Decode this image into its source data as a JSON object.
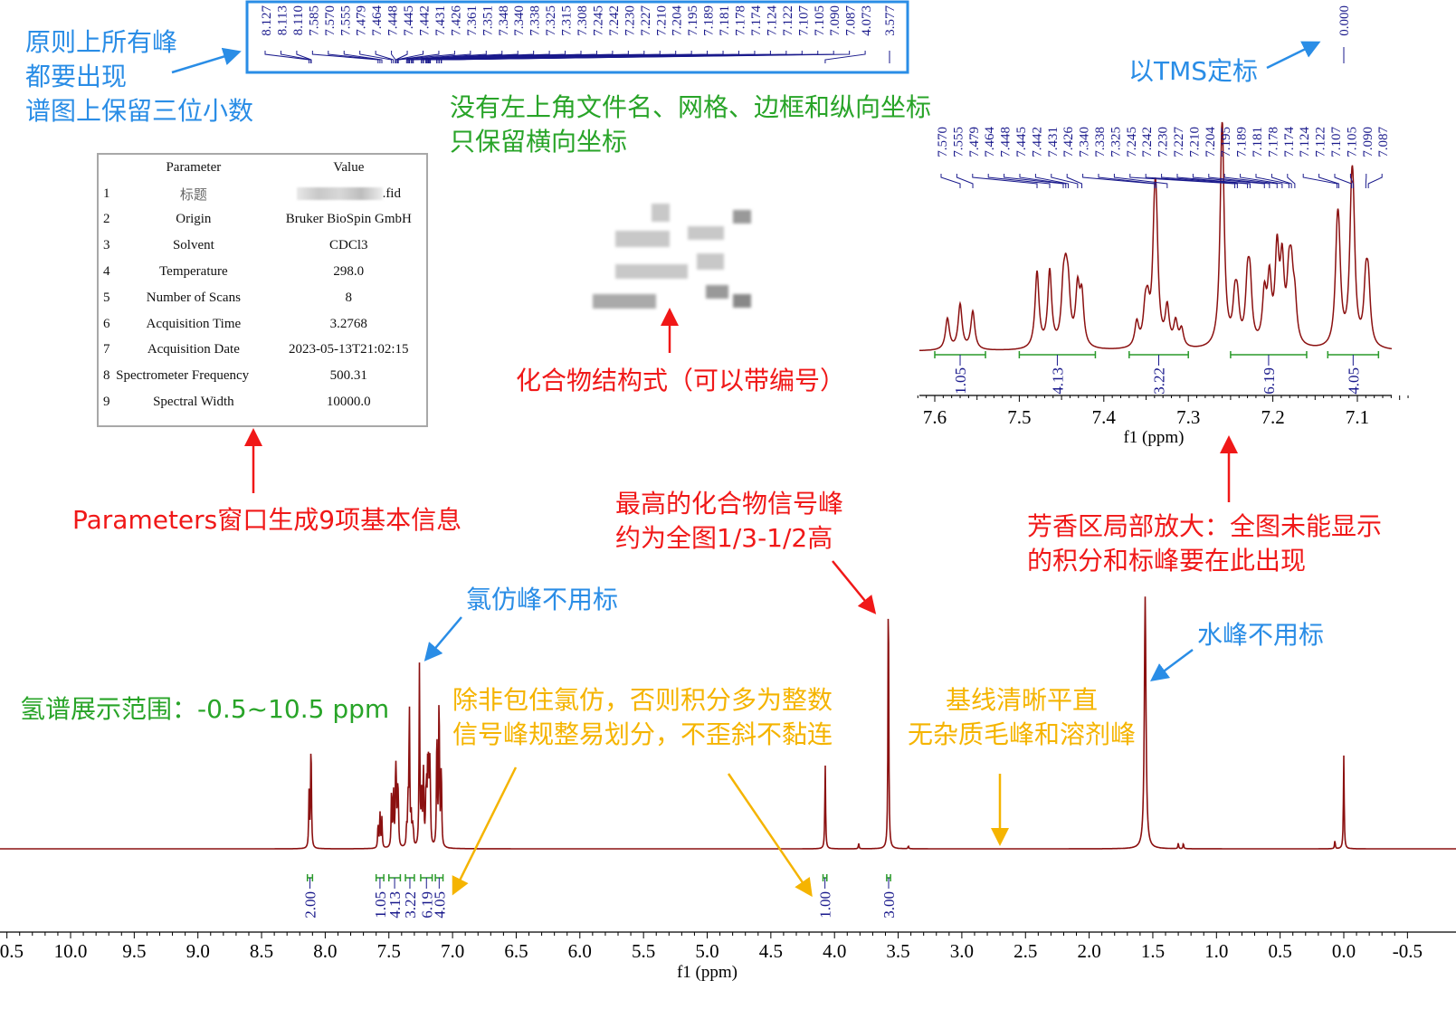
{
  "chart_data": {
    "type": "line",
    "xlabel": "f1 (ppm)",
    "xlim": [
      10.5,
      -0.5
    ],
    "inverted_x": true,
    "x_ticks": [
      "10.5",
      "10.0",
      "9.5",
      "9.0",
      "8.5",
      "8.0",
      "7.5",
      "7.0",
      "6.5",
      "6.0",
      "5.5",
      "5.0",
      "4.5",
      "4.0",
      "3.5",
      "3.0",
      "2.5",
      "2.0",
      "1.5",
      "1.0",
      "0.5",
      "0.0",
      "-0.5"
    ],
    "series_color": "#8b1010",
    "peaks": [
      {
        "ppm": 8.127,
        "i": 20
      },
      {
        "ppm": 8.113,
        "i": 22
      },
      {
        "ppm": 8.11,
        "i": 20
      },
      {
        "ppm": 7.585,
        "i": 9
      },
      {
        "ppm": 7.57,
        "i": 13
      },
      {
        "ppm": 7.555,
        "i": 11
      },
      {
        "ppm": 7.479,
        "i": 22
      },
      {
        "ppm": 7.464,
        "i": 22
      },
      {
        "ppm": 7.448,
        "i": 14
      },
      {
        "ppm": 7.445,
        "i": 14
      },
      {
        "ppm": 7.442,
        "i": 13
      },
      {
        "ppm": 7.431,
        "i": 16
      },
      {
        "ppm": 7.426,
        "i": 14
      },
      {
        "ppm": 7.361,
        "i": 7
      },
      {
        "ppm": 7.351,
        "i": 9
      },
      {
        "ppm": 7.348,
        "i": 9
      },
      {
        "ppm": 7.34,
        "i": 27
      },
      {
        "ppm": 7.338,
        "i": 27
      },
      {
        "ppm": 7.325,
        "i": 11
      },
      {
        "ppm": 7.315,
        "i": 7
      },
      {
        "ppm": 7.308,
        "i": 5
      },
      {
        "ppm": 7.26,
        "i": 66
      },
      {
        "ppm": 7.245,
        "i": 11
      },
      {
        "ppm": 7.242,
        "i": 11
      },
      {
        "ppm": 7.23,
        "i": 16
      },
      {
        "ppm": 7.227,
        "i": 16
      },
      {
        "ppm": 7.21,
        "i": 14
      },
      {
        "ppm": 7.204,
        "i": 18
      },
      {
        "ppm": 7.195,
        "i": 26
      },
      {
        "ppm": 7.189,
        "i": 22
      },
      {
        "ppm": 7.181,
        "i": 16
      },
      {
        "ppm": 7.178,
        "i": 16
      },
      {
        "ppm": 7.174,
        "i": 11
      },
      {
        "ppm": 7.124,
        "i": 22
      },
      {
        "ppm": 7.122,
        "i": 22
      },
      {
        "ppm": 7.107,
        "i": 29
      },
      {
        "ppm": 7.105,
        "i": 29
      },
      {
        "ppm": 7.09,
        "i": 16
      },
      {
        "ppm": 7.087,
        "i": 16
      },
      {
        "ppm": 4.073,
        "i": 31
      },
      {
        "ppm": 3.81,
        "i": 2
      },
      {
        "ppm": 3.577,
        "i": 100
      },
      {
        "ppm": 3.42,
        "i": 1
      },
      {
        "ppm": 1.56,
        "i": 92,
        "broad": true
      },
      {
        "ppm": 1.3,
        "i": 2
      },
      {
        "ppm": 1.26,
        "i": 2
      },
      {
        "ppm": 0.07,
        "i": 3
      },
      {
        "ppm": 0.0,
        "i": 34
      }
    ],
    "peak_labels_top": [
      "8.127",
      "8.113",
      "8.110",
      "7.585",
      "7.570",
      "7.555",
      "7.479",
      "7.464",
      "7.448",
      "7.445",
      "7.442",
      "7.431",
      "7.426",
      "7.361",
      "7.351",
      "7.348",
      "7.340",
      "7.338",
      "7.325",
      "7.315",
      "7.308",
      "7.245",
      "7.242",
      "7.230",
      "7.227",
      "7.210",
      "7.204",
      "7.195",
      "7.189",
      "7.181",
      "7.178",
      "7.174",
      "7.124",
      "7.122",
      "7.107",
      "7.105",
      "7.090",
      "7.087",
      "4.073"
    ],
    "peak_label_3577": "3.577",
    "peak_label_tms": "0.000",
    "integrals": [
      {
        "from": 8.14,
        "to": 8.1,
        "value": "2.00"
      },
      {
        "from": 7.6,
        "to": 7.54,
        "value": "1.05"
      },
      {
        "from": 7.5,
        "to": 7.41,
        "value": "4.13"
      },
      {
        "from": 7.37,
        "to": 7.3,
        "value": "3.22"
      },
      {
        "from": 7.25,
        "to": 7.16,
        "value": "6.19"
      },
      {
        "from": 7.135,
        "to": 7.075,
        "value": "4.05"
      },
      {
        "from": 4.09,
        "to": 4.06,
        "value": "1.00"
      },
      {
        "from": 3.59,
        "to": 3.56,
        "value": "3.00"
      }
    ],
    "inset": {
      "xlim": [
        7.63,
        7.04
      ],
      "x_ticks": [
        "7.6",
        "7.5",
        "7.4",
        "7.3",
        "7.2",
        "7.1"
      ],
      "xlabel": "f1 (ppm)",
      "peak_labels": [
        "7.570",
        "7.555",
        "7.479",
        "7.464",
        "7.448",
        "7.445",
        "7.442",
        "7.431",
        "7.426",
        "7.340",
        "7.338",
        "7.325",
        "7.245",
        "7.242",
        "7.230",
        "7.227",
        "7.210",
        "7.204",
        "7.195",
        "7.189",
        "7.181",
        "7.178",
        "7.174",
        "7.124",
        "7.122",
        "7.107",
        "7.105",
        "7.090",
        "7.087"
      ],
      "integrals": [
        {
          "from": 7.6,
          "to": 7.54,
          "value": "1.05"
        },
        {
          "from": 7.5,
          "to": 7.41,
          "value": "4.13"
        },
        {
          "from": 7.37,
          "to": 7.3,
          "value": "3.22"
        },
        {
          "from": 7.25,
          "to": 7.16,
          "value": "6.19"
        },
        {
          "from": 7.135,
          "to": 7.075,
          "value": "4.05"
        }
      ]
    }
  },
  "params": {
    "header": {
      "parameter": "Parameter",
      "value": "Value"
    },
    "rows": [
      {
        "n": "1",
        "p": "标题",
        "v": ".fid"
      },
      {
        "n": "2",
        "p": "Origin",
        "v": "Bruker BioSpin GmbH"
      },
      {
        "n": "3",
        "p": "Solvent",
        "v": "CDCl3"
      },
      {
        "n": "4",
        "p": "Temperature",
        "v": "298.0"
      },
      {
        "n": "5",
        "p": "Number of Scans",
        "v": "8"
      },
      {
        "n": "6",
        "p": "Acquisition Time",
        "v": "3.2768"
      },
      {
        "n": "7",
        "p": "Acquisition Date",
        "v": "2023-05-13T21:02:15"
      },
      {
        "n": "8",
        "p": "Spectrometer Frequency",
        "v": "500.31"
      },
      {
        "n": "9",
        "p": "Spectral Width",
        "v": "10000.0"
      }
    ]
  },
  "annotations": {
    "all_peaks": [
      "原则上所有峰",
      "都要出现",
      "谱图上保留三位小数"
    ],
    "no_border": [
      "没有左上角文件名、网格、边框和纵向坐标",
      "只保留横向坐标"
    ],
    "tms": "以TMS定标",
    "structure": "化合物结构式（可以带编号）",
    "params": "Parameters窗口生成9项基本信息",
    "tallest": [
      "最高的化合物信号峰",
      "约为全图1/3-1/2高"
    ],
    "zoom": [
      "芳香区局部放大：全图未能显示",
      "的积分和标峰要在此出现"
    ],
    "chloroform": "氯仿峰不用标",
    "water": "水峰不用标",
    "range": "氢谱展示范围：-0.5~10.5 ppm",
    "integral": [
      "除非包住氯仿，否则积分多为整数",
      "信号峰规整易划分，不歪斜不黏连"
    ],
    "baseline": [
      "基线清晰平直",
      "无杂质毛峰和溶剂峰"
    ]
  },
  "colors": {
    "spectrum": "#8b1010",
    "labels": "#1a1a8c",
    "integral": "#2a9a2a",
    "blue": "#2a8de6",
    "red": "#f01818",
    "orange": "#f5b400",
    "green": "#28a428"
  }
}
